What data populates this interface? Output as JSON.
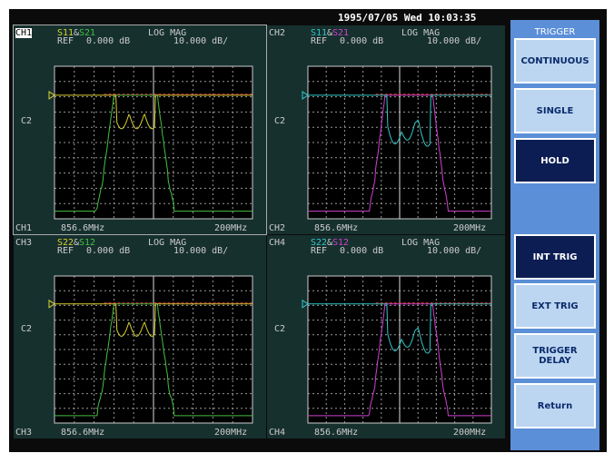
{
  "datetime": "1995/07/05 Wed 10:03:35",
  "channels": [
    {
      "id": "CH1",
      "param_a": "S11",
      "amp": "&",
      "param_b": "S21",
      "format": "LOG MAG",
      "ref_label": "REF",
      "ref_value": "0.000 dB",
      "scale": "10.000 dB/",
      "marker": "C2",
      "start": "856.6MHz",
      "span": "200MHz"
    },
    {
      "id": "CH2",
      "param_a": "S11",
      "amp": "&",
      "param_b": "S21",
      "format": "LOG MAG",
      "ref_label": "REF",
      "ref_value": "0.000 dB",
      "scale": "10.000 dB/",
      "marker": "C2",
      "start": "856.6MHz",
      "span": "200MHz"
    },
    {
      "id": "CH3",
      "param_a": "S22",
      "amp": "&",
      "param_b": "S12",
      "format": "LOG MAG",
      "ref_label": "REF",
      "ref_value": "0.000 dB",
      "scale": "10.000 dB/",
      "marker": "C2",
      "start": "856.6MHz",
      "span": "200MHz"
    },
    {
      "id": "CH4",
      "param_a": "S22",
      "amp": "&",
      "param_b": "S12",
      "format": "LOG MAG",
      "ref_label": "REF",
      "ref_value": "0.000 dB",
      "scale": "10.000 dB/",
      "marker": "C2",
      "start": "856.6MHz",
      "span": "200MHz"
    }
  ],
  "menu": {
    "title": "TRIGGER",
    "buttons": [
      "CONTINUOUS",
      "SINGLE",
      "HOLD",
      "INT TRIG",
      "EXT TRIG",
      "TRIGGER DELAY",
      "Return"
    ]
  }
}
